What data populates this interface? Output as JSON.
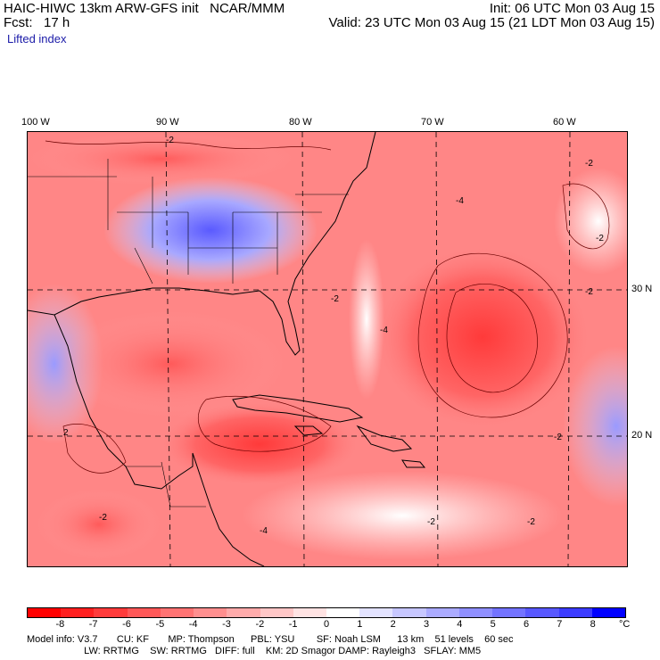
{
  "header": {
    "line1_left": "HAIC-HIWC 13km ARW-GFS init   NCAR/MMM",
    "line1_right": "Init: 06 UTC Mon 03 Aug 15",
    "line2_left": "Fcst:   17 h",
    "line2_right": "Valid: 23 UTC Mon 03 Aug 15 (21 LDT Mon 03 Aug 15)",
    "field_name": "Lifted index"
  },
  "map": {
    "lon_labels": [
      "100 W",
      "90 W",
      "80 W",
      "70 W",
      "60 W"
    ],
    "lat_labels": [
      "30 N",
      "20 N"
    ],
    "contour_labels": [
      "-2",
      "-4",
      "2"
    ],
    "colors": {
      "strong_negative": "#ff3a3a",
      "moderate_negative": "#ff7b7b",
      "weak_negative": "#ffb8b8",
      "neutral": "#ffffff",
      "weak_positive": "#c8c8ff",
      "moderate_positive": "#8c8cff",
      "strong_positive": "#4a4aff"
    }
  },
  "colorbar": {
    "tick_labels": [
      "-8",
      "-7",
      "-6",
      "-5",
      "-4",
      "-3",
      "-2",
      "-1",
      "0",
      "1",
      "2",
      "3",
      "4",
      "5",
      "6",
      "7",
      "8"
    ],
    "unit": "°C",
    "colors": [
      "#ff0000",
      "#ff2020",
      "#ff3b3b",
      "#ff5858",
      "#ff7373",
      "#ff8f8f",
      "#ffabab",
      "#ffc7c7",
      "#ffe3e3",
      "#ffffff",
      "#e3e3ff",
      "#c7c7ff",
      "#ababff",
      "#8f8fff",
      "#7373ff",
      "#5858ff",
      "#3b3bff",
      "#0000ff"
    ]
  },
  "info": {
    "line1": "Model info: V3.7       CU: KF       MP: Thompson      PBL: YSU        SF: Noah LSM      13 km    51 levels    60 sec",
    "line2": "                     LW: RRTMG    SW: RRTMG   DIFF: full    KM: 2D Smagor DAMP: Rayleigh3   SFLAY: MM5"
  }
}
